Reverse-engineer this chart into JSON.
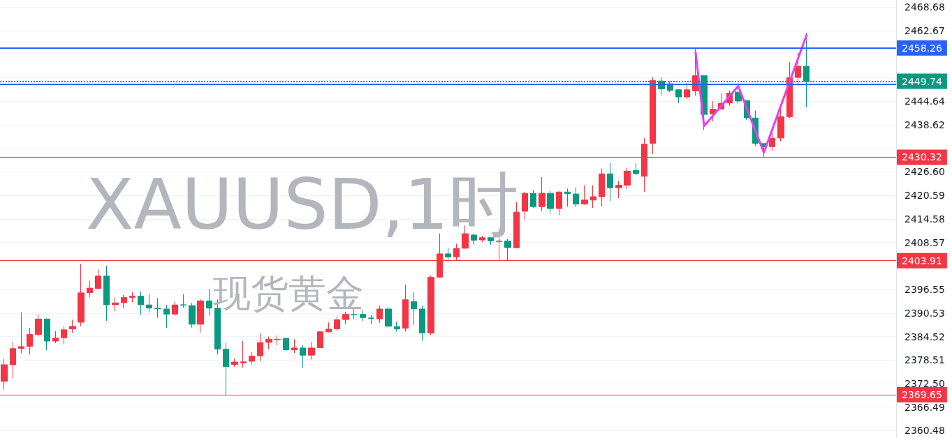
{
  "chart_data": {
    "type": "candlestick",
    "title": "XAUUSD,1时",
    "subtitle": "现货黄金",
    "categories": [
      null,
      null,
      null,
      null,
      null,
      null,
      null,
      null,
      null,
      null,
      null,
      null,
      null,
      null,
      null,
      null,
      null,
      null,
      null,
      null,
      null,
      null,
      null,
      null,
      null,
      null,
      null,
      null,
      null,
      null,
      null,
      null,
      null,
      null,
      null,
      null,
      null,
      null,
      null,
      null,
      null,
      null,
      null,
      null,
      null,
      null,
      null,
      null,
      null,
      null,
      null,
      null,
      null,
      null,
      null,
      null,
      null,
      null,
      null,
      null,
      null,
      null,
      null,
      null,
      null,
      null,
      null,
      null,
      null,
      null,
      null,
      null,
      null,
      null,
      null,
      null,
      null,
      null,
      null,
      null,
      null,
      null,
      null,
      null,
      null,
      null,
      null,
      null,
      null,
      null,
      null,
      null,
      null,
      null,
      null,
      null,
      null,
      null,
      null,
      null,
      null,
      null,
      null,
      null,
      null
    ],
    "series": [
      {
        "ohlc": [
          [
            2373.07,
            2378.8,
            2370.95,
            2377.31
          ],
          [
            2377.31,
            2383.15,
            2373.87,
            2381.43
          ],
          [
            2381.49,
            2390.7,
            2380.23,
            2381.94
          ],
          [
            2382.0,
            2386.75,
            2379.94,
            2385.04
          ],
          [
            2385.04,
            2390.19,
            2384.58,
            2388.99
          ],
          [
            2388.99,
            2389.16,
            2381.09,
            2383.37
          ],
          [
            2383.37,
            2385.89,
            2382.86,
            2384.12
          ],
          [
            2384.23,
            2387.1,
            2382.52,
            2386.24
          ],
          [
            2386.47,
            2388.81,
            2385.44,
            2387.1
          ],
          [
            2388.18,
            2403.07,
            2387.15,
            2395.68
          ],
          [
            2395.74,
            2398.78,
            2394.48,
            2396.89
          ],
          [
            2396.77,
            2401.7,
            2396.77,
            2399.98
          ],
          [
            2399.98,
            2402.55,
            2388.53,
            2392.65
          ],
          [
            2392.65,
            2394.48,
            2390.93,
            2393.11
          ],
          [
            2393.16,
            2395.17,
            2391.73,
            2394.48
          ],
          [
            2394.54,
            2395.86,
            2393.28,
            2394.83
          ],
          [
            2394.83,
            2396.03,
            2390.02,
            2392.65
          ],
          [
            2392.59,
            2395.34,
            2390.7,
            2391.79
          ],
          [
            2391.73,
            2394.31,
            2389.33,
            2391.62
          ],
          [
            2391.56,
            2392.59,
            2386.75,
            2390.25
          ],
          [
            2390.25,
            2393.45,
            2389.9,
            2392.59
          ],
          [
            2392.65,
            2395.34,
            2391.91,
            2392.54
          ],
          [
            2392.42,
            2393.11,
            2386.81,
            2387.67
          ],
          [
            2387.67,
            2394.14,
            2385.44,
            2393.62
          ],
          [
            2393.62,
            2396.71,
            2389.9,
            2391.79
          ],
          [
            2391.73,
            2393.97,
            2379.94,
            2381.31
          ],
          [
            2381.26,
            2382.97,
            2369.64,
            2376.85
          ],
          [
            2377.4,
            2378.85,
            2376.8,
            2378.0
          ],
          [
            2377.8,
            2383.38,
            2376.6,
            2378.05
          ],
          [
            2378.22,
            2380.57,
            2377.4,
            2379.54
          ],
          [
            2379.6,
            2385.38,
            2378.22,
            2382.97
          ],
          [
            2383.03,
            2384.52,
            2381.31,
            2383.83
          ],
          [
            2383.72,
            2384.81,
            2382.23,
            2383.83
          ],
          [
            2384.06,
            2384.18,
            2380.8,
            2381.14
          ],
          [
            2381.14,
            2383.83,
            2380.34,
            2381.6
          ],
          [
            2381.6,
            2382.29,
            2376.5,
            2379.77
          ],
          [
            2379.77,
            2383.2,
            2378.62,
            2381.6
          ],
          [
            2381.66,
            2385.89,
            2381.54,
            2385.72
          ],
          [
            2385.72,
            2388.13,
            2385.61,
            2386.41
          ],
          [
            2386.47,
            2389.84,
            2385.95,
            2388.81
          ],
          [
            2388.87,
            2390.87,
            2387.67,
            2390.19
          ],
          [
            2390.19,
            2391.91,
            2388.87,
            2390.13
          ],
          [
            2390.19,
            2391.33,
            2388.53,
            2389.39
          ],
          [
            2389.27,
            2390.02,
            2387.67,
            2389.16
          ],
          [
            2389.04,
            2392.42,
            2388.01,
            2391.56
          ],
          [
            2391.56,
            2391.91,
            2386.81,
            2387.15
          ],
          [
            2387.04,
            2388.3,
            2385.78,
            2386.47
          ],
          [
            2386.64,
            2397.74,
            2385.78,
            2393.91
          ],
          [
            2393.45,
            2395.86,
            2387.5,
            2391.62
          ],
          [
            2391.56,
            2392.42,
            2383.38,
            2385.44
          ],
          [
            2385.44,
            2400.09,
            2384.92,
            2399.63
          ],
          [
            2399.69,
            2410.86,
            2399.69,
            2405.65
          ],
          [
            2405.65,
            2407.2,
            2403.7,
            2404.85
          ],
          [
            2404.85,
            2408.23,
            2403.88,
            2407.03
          ],
          [
            2407.08,
            2412.86,
            2407.08,
            2410.8
          ],
          [
            2410.46,
            2410.8,
            2408.11,
            2409.14
          ],
          [
            2409.2,
            2410.23,
            2408.63,
            2409.77
          ],
          [
            2409.77,
            2409.95,
            2407.94,
            2408.97
          ],
          [
            2408.8,
            2412.18,
            2403.82,
            2408.91
          ],
          [
            2408.91,
            2409.43,
            2403.82,
            2407.25
          ],
          [
            2407.2,
            2418.88,
            2407.08,
            2416.3
          ],
          [
            2416.53,
            2421.45,
            2414.3,
            2421.11
          ],
          [
            2421.11,
            2421.97,
            2417.39,
            2417.73
          ],
          [
            2417.73,
            2425.23,
            2416.53,
            2421.11
          ],
          [
            2421.11,
            2421.8,
            2415.84,
            2417.22
          ],
          [
            2417.22,
            2421.62,
            2415.5,
            2421.45
          ],
          [
            2421.45,
            2422.31,
            2417.73,
            2420.99
          ],
          [
            2420.94,
            2422.65,
            2417.56,
            2418.36
          ],
          [
            2418.36,
            2423.17,
            2418.19,
            2419.39
          ],
          [
            2419.39,
            2423.17,
            2417.39,
            2420.25
          ],
          [
            2420.25,
            2427.46,
            2417.73,
            2426.09
          ],
          [
            2426.09,
            2428.84,
            2419.11,
            2422.54
          ],
          [
            2422.54,
            2424.2,
            2419.91,
            2423.17
          ],
          [
            2423.17,
            2427.64,
            2422.31,
            2426.78
          ],
          [
            2426.95,
            2428.84,
            2425.8,
            2426.15
          ],
          [
            2425.46,
            2435.25,
            2421.45,
            2433.65
          ],
          [
            2433.87,
            2450.82,
            2431.13,
            2449.96
          ],
          [
            2449.79,
            2450.82,
            2446.07,
            2447.79
          ],
          [
            2449.1,
            2449.79,
            2446.93,
            2447.44
          ],
          [
            2447.56,
            2447.73,
            2444.18,
            2445.73
          ],
          [
            2445.73,
            2449.27,
            2445.21,
            2447.56
          ],
          [
            2447.27,
            2458.38,
            2446.07,
            2451.16
          ],
          [
            2451.16,
            2451.16,
            2437.31,
            2441.26
          ],
          [
            2441.43,
            2444.64,
            2439.48,
            2442.58
          ],
          [
            2442.63,
            2446.7,
            2442.63,
            2444.12
          ],
          [
            2444.18,
            2447.39,
            2443.49,
            2446.7
          ],
          [
            2446.87,
            2447.39,
            2444.01,
            2444.69
          ],
          [
            2444.81,
            2444.81,
            2439.89,
            2440.4
          ],
          [
            2440.34,
            2442.23,
            2433.19,
            2433.87
          ],
          [
            2433.82,
            2433.82,
            2430.27,
            2433.02
          ],
          [
            2433.02,
            2436.62,
            2431.98,
            2435.19
          ],
          [
            2435.25,
            2442.92,
            2434.39,
            2440.69
          ],
          [
            2440.69,
            2454.6,
            2440.4,
            2450.65
          ],
          [
            2450.71,
            2457.18,
            2448.47,
            2453.57
          ],
          [
            2453.57,
            2462.16,
            2443.15,
            2449.74
          ],
          null,
          null,
          null,
          null,
          null,
          null,
          null,
          null,
          null,
          null
        ],
        "colors": [
          "#f23645",
          "#f23645",
          "#f23645",
          "#f23645",
          "#f23645",
          "#089981",
          "#f23645",
          "#f23645",
          "#f23645",
          "#f23645",
          "#f23645",
          "#f23645",
          "#089981",
          "#f23645",
          "#f23645",
          "#f23645",
          "#089981",
          "#089981",
          "#089981",
          "#089981",
          "#f23645",
          "#089981",
          "#089981",
          "#f23645",
          "#089981",
          "#089981",
          "#089981",
          "#f23645",
          "#f23645",
          "#f23645",
          "#f23645",
          "#f23645",
          "#f23645",
          "#089981",
          "#f23645",
          "#089981",
          "#f23645",
          "#f23645",
          "#f23645",
          "#f23645",
          "#f23645",
          "#089981",
          "#089981",
          "#089981",
          "#f23645",
          "#089981",
          "#089981",
          "#f23645",
          "#089981",
          "#089981",
          "#f23645",
          "#f23645",
          "#089981",
          "#f23645",
          "#f23645",
          "#089981",
          "#f23645",
          "#089981",
          "#f23645",
          "#089981",
          "#f23645",
          "#f23645",
          "#089981",
          "#f23645",
          "#089981",
          "#f23645",
          "#089981",
          "#089981",
          "#f23645",
          "#f23645",
          "#f23645",
          "#089981",
          "#f23645",
          "#f23645",
          "#089981",
          "#f23645",
          "#f23645",
          "#089981",
          "#089981",
          "#089981",
          "#f23645",
          "#f23645",
          "#089981",
          "#f23645",
          "#f23645",
          "#f23645",
          "#089981",
          "#089981",
          "#089981",
          "#089981",
          "#f23645",
          "#f23645",
          "#f23645",
          "#f23645",
          "#089981",
          null,
          null,
          null,
          null,
          null,
          null,
          null,
          null,
          null,
          null
        ]
      },
      {
        "type": "line",
        "color": "#e83ff0",
        "values": [
          null,
          null,
          null,
          null,
          null,
          null,
          null,
          null,
          null,
          null,
          null,
          null,
          null,
          null,
          null,
          null,
          null,
          null,
          null,
          null,
          null,
          null,
          null,
          null,
          null,
          null,
          null,
          null,
          null,
          null,
          null,
          null,
          null,
          null,
          null,
          null,
          null,
          null,
          null,
          null,
          null,
          null,
          null,
          null,
          null,
          null,
          null,
          null,
          null,
          null,
          null,
          null,
          null,
          null,
          null,
          null,
          null,
          null,
          null,
          null,
          null,
          null,
          null,
          null,
          null,
          null,
          null,
          null,
          null,
          null,
          null,
          null,
          null,
          null,
          null,
          null,
          null,
          null,
          null,
          null,
          null,
          2457.2,
          2438.3,
          null,
          null,
          null,
          2448.5,
          null,
          null,
          2431.5,
          null,
          null,
          null,
          null,
          2461.5,
          null,
          null,
          null,
          null,
          null,
          null,
          null,
          null,
          null,
          null
        ]
      }
    ],
    "ylim": [
      2358.6,
      2470.5
    ],
    "yticks": [
      2360.48,
      2366.49,
      {
        "value": 2372.5,
        "label": "2372.50"
      },
      2378.51,
      2384.52,
      2390.53,
      2396.55,
      {
        "value": 2402.56,
        "label": null
      },
      2408.57,
      2414.58,
      {
        "value": 2420.59,
        "label": "2420.59"
      },
      {
        "value": 2426.6,
        "label": "2426.60"
      },
      {
        "value": 2432.61,
        "label": null
      },
      2438.62,
      2444.64,
      {
        "value": 2450.65,
        "label": null
      },
      {
        "value": 2456.66,
        "label": null
      },
      2462.67,
      2468.68
    ],
    "ref_lines": [
      {
        "axis": "y",
        "value": 2458.26,
        "label": "2458.26",
        "color": "#2962ff",
        "line_style": "solid"
      },
      {
        "axis": "y",
        "value": 2448.93,
        "label": null,
        "color": "#2962ff",
        "line_style": "solid"
      },
      {
        "axis": "y",
        "value": 2449.74,
        "label": "2449.74",
        "color": "#089981",
        "line_style": "dotted"
      },
      {
        "axis": "y",
        "value": 2430.32,
        "label": "2430.32",
        "color": "#f23645",
        "line_style": "solid"
      },
      {
        "axis": "y",
        "value": 2403.91,
        "label": "2403.91",
        "color": "#f23645",
        "line_style": "solid"
      },
      {
        "axis": "y",
        "value": 2369.65,
        "label": "2369.65",
        "color": "#f23645",
        "line_style": "solid"
      }
    ],
    "grid": "y",
    "tick_labels": "y",
    "marker": "none",
    "line_style": "solid"
  }
}
